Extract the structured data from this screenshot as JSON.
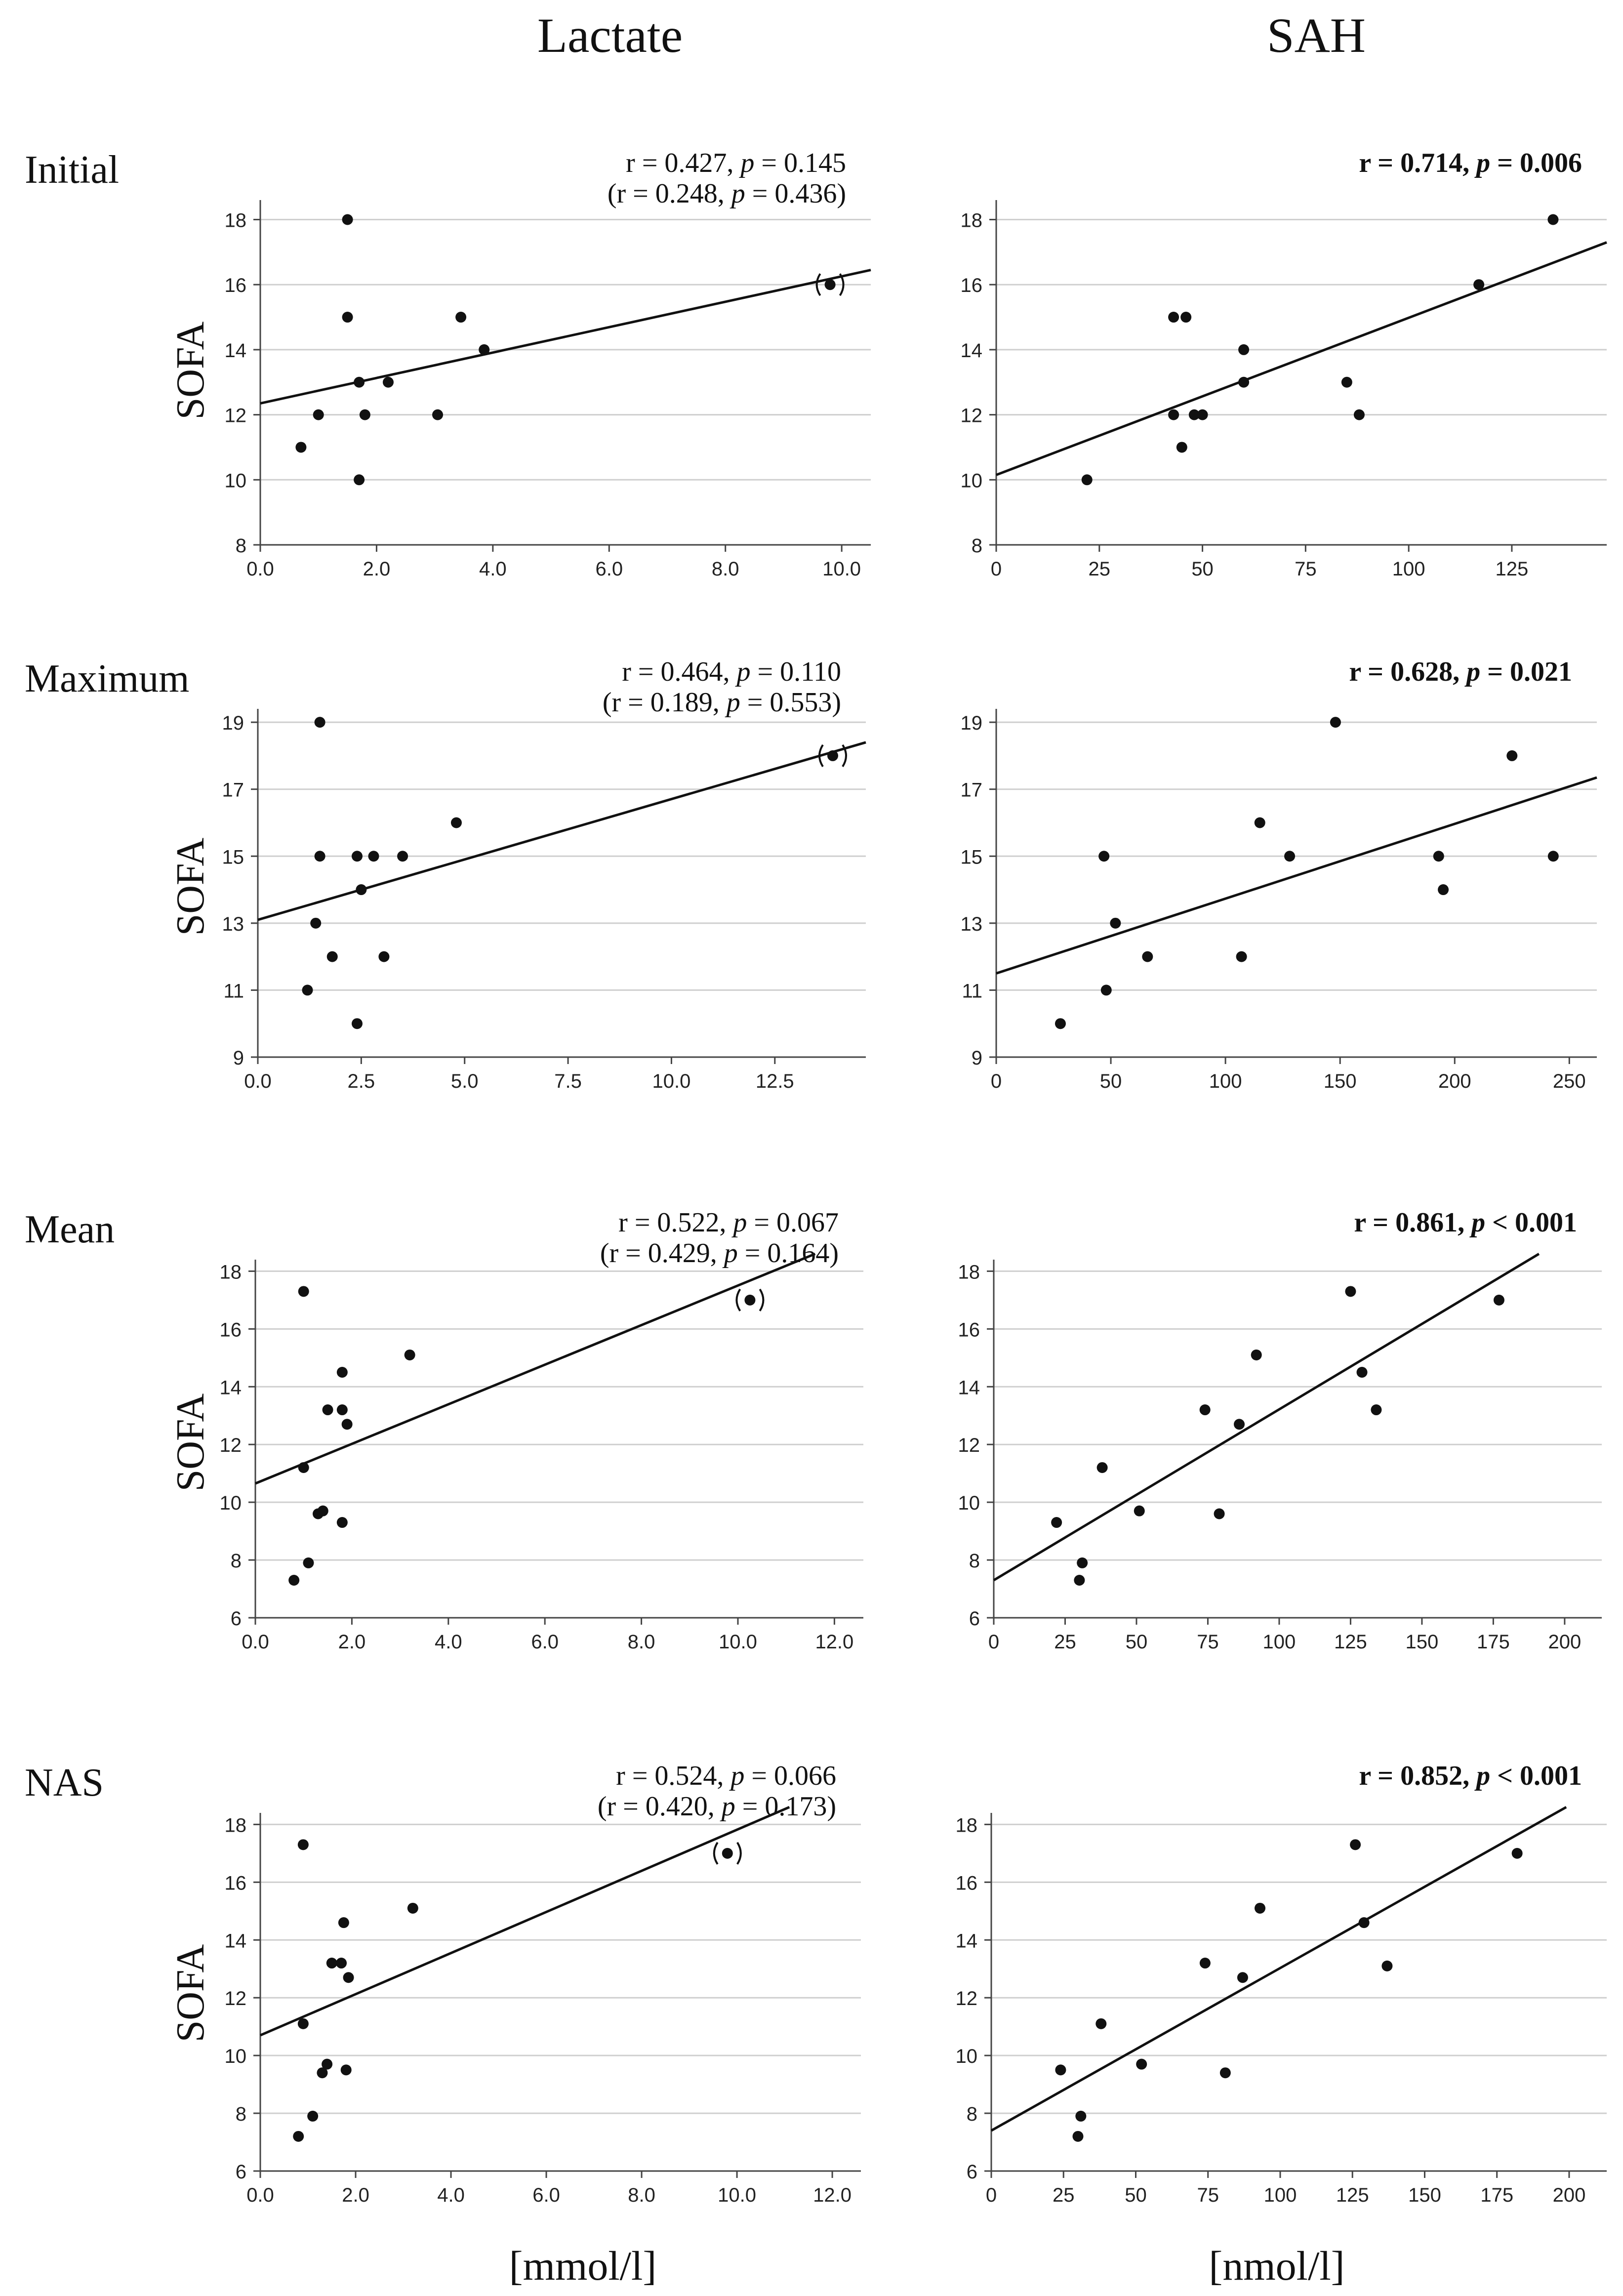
{
  "columns": [
    "Lactate",
    "SAH"
  ],
  "row_labels": [
    "Initial",
    "Maximum",
    "Mean",
    "NAS"
  ],
  "ylabel": "SOFA",
  "xlabels": [
    "[mmol/l]",
    "[nmol/l]"
  ],
  "chart_data": [
    {
      "type": "scatter",
      "column": "Lactate",
      "row": "Initial",
      "stat_line1": "r = 0.427, p = 0.145",
      "stat_line2": "(r = 0.248, p = 0.436)",
      "xlim": [
        0,
        10.5
      ],
      "ylim": [
        8,
        18.6
      ],
      "xticks": [
        0,
        2,
        4,
        6,
        8,
        10
      ],
      "xtick_labels": [
        "0.0",
        "2.0",
        "4.0",
        "6.0",
        "8.0",
        "10.0"
      ],
      "yticks": [
        8,
        10,
        12,
        14,
        16,
        18
      ],
      "ytick_labels": [
        "8",
        "10",
        "12",
        "14",
        "16",
        "18"
      ],
      "points": [
        [
          0.7,
          11
        ],
        [
          1.0,
          12
        ],
        [
          1.5,
          18
        ],
        [
          1.5,
          15
        ],
        [
          1.7,
          13
        ],
        [
          1.7,
          10
        ],
        [
          1.8,
          12
        ],
        [
          2.2,
          13
        ],
        [
          3.05,
          12
        ],
        [
          3.45,
          15
        ],
        [
          3.85,
          14
        ]
      ],
      "outlier": [
        9.8,
        16
      ],
      "fit": [
        [
          0,
          12.35
        ],
        [
          10.5,
          16.45
        ]
      ]
    },
    {
      "type": "scatter",
      "column": "SAH",
      "row": "Initial",
      "stat_line1": "r = 0.714, p = 0.006",
      "stat_line2": "",
      "xlim": [
        0,
        148
      ],
      "ylim": [
        8,
        18.6
      ],
      "xticks": [
        0,
        25,
        50,
        75,
        100,
        125
      ],
      "xtick_labels": [
        "0",
        "25",
        "50",
        "75",
        "100",
        "125"
      ],
      "yticks": [
        8,
        10,
        12,
        14,
        16,
        18
      ],
      "ytick_labels": [
        "8",
        "10",
        "12",
        "14",
        "16",
        "18"
      ],
      "points": [
        [
          22,
          10
        ],
        [
          43,
          15
        ],
        [
          43,
          12
        ],
        [
          45,
          11
        ],
        [
          46,
          15
        ],
        [
          48,
          12
        ],
        [
          50,
          12
        ],
        [
          60,
          14
        ],
        [
          60,
          13
        ],
        [
          85,
          13
        ],
        [
          88,
          12
        ],
        [
          117,
          16
        ],
        [
          135,
          18
        ]
      ],
      "fit": [
        [
          0,
          10.15
        ],
        [
          148,
          17.3
        ]
      ]
    },
    {
      "type": "scatter",
      "column": "Lactate",
      "row": "Maximum",
      "stat_line1": "r = 0.464, p = 0.110",
      "stat_line2": "(r = 0.189, p = 0.553)",
      "xlim": [
        0,
        14.7
      ],
      "ylim": [
        9,
        19.4
      ],
      "xticks": [
        0,
        2.5,
        5,
        7.5,
        10,
        12.5
      ],
      "xtick_labels": [
        "0.0",
        "2.5",
        "5.0",
        "7.5",
        "10.0",
        "12.5"
      ],
      "yticks": [
        9,
        11,
        13,
        15,
        17,
        19
      ],
      "ytick_labels": [
        "9",
        "11",
        "13",
        "15",
        "17",
        "19"
      ],
      "points": [
        [
          1.2,
          11
        ],
        [
          1.4,
          13
        ],
        [
          1.5,
          19
        ],
        [
          1.5,
          15
        ],
        [
          1.8,
          12
        ],
        [
          2.4,
          15
        ],
        [
          2.4,
          10
        ],
        [
          2.5,
          14
        ],
        [
          2.8,
          15
        ],
        [
          3.05,
          12
        ],
        [
          3.5,
          15
        ],
        [
          4.8,
          16
        ]
      ],
      "outlier": [
        13.9,
        18
      ],
      "fit": [
        [
          0,
          13.1
        ],
        [
          14.7,
          18.4
        ]
      ]
    },
    {
      "type": "scatter",
      "column": "SAH",
      "row": "Maximum",
      "stat_line1": "r = 0.628, p = 0.021",
      "stat_line2": "",
      "xlim": [
        0,
        262
      ],
      "ylim": [
        9,
        19.4
      ],
      "xticks": [
        0,
        50,
        100,
        150,
        200,
        250
      ],
      "xtick_labels": [
        "0",
        "50",
        "100",
        "150",
        "200",
        "250"
      ],
      "yticks": [
        9,
        11,
        13,
        15,
        17,
        19
      ],
      "ytick_labels": [
        "9",
        "11",
        "13",
        "15",
        "17",
        "19"
      ],
      "points": [
        [
          28,
          10
        ],
        [
          47,
          15
        ],
        [
          48,
          11
        ],
        [
          52,
          13
        ],
        [
          66,
          12
        ],
        [
          107,
          12
        ],
        [
          115,
          16
        ],
        [
          128,
          15
        ],
        [
          148,
          19
        ],
        [
          193,
          15
        ],
        [
          195,
          14
        ],
        [
          225,
          18
        ],
        [
          243,
          15
        ]
      ],
      "fit": [
        [
          0,
          11.5
        ],
        [
          262,
          17.35
        ]
      ]
    },
    {
      "type": "scatter",
      "column": "Lactate",
      "row": "Mean",
      "stat_line1": "r = 0.522, p = 0.067",
      "stat_line2": "(r = 0.429, p = 0.164)",
      "xlim": [
        0,
        12.6
      ],
      "ylim": [
        6,
        18.4
      ],
      "xticks": [
        0,
        2,
        4,
        6,
        8,
        10,
        12
      ],
      "xtick_labels": [
        "0.0",
        "2.0",
        "4.0",
        "6.0",
        "8.0",
        "10.0",
        "12.0"
      ],
      "yticks": [
        6,
        8,
        10,
        12,
        14,
        16,
        18
      ],
      "ytick_labels": [
        "6",
        "8",
        "10",
        "12",
        "14",
        "16",
        "18"
      ],
      "points": [
        [
          0.8,
          7.3
        ],
        [
          1.0,
          17.3
        ],
        [
          1.0,
          11.2
        ],
        [
          1.1,
          7.9
        ],
        [
          1.3,
          9.6
        ],
        [
          1.4,
          9.7
        ],
        [
          1.5,
          13.2
        ],
        [
          1.8,
          13.2
        ],
        [
          1.8,
          14.5
        ],
        [
          1.8,
          9.3
        ],
        [
          1.9,
          12.7
        ],
        [
          3.2,
          15.1
        ]
      ],
      "outlier": [
        10.25,
        17
      ],
      "fit": [
        [
          0,
          10.65
        ],
        [
          11.6,
          18.6
        ]
      ]
    },
    {
      "type": "scatter",
      "column": "SAH",
      "row": "Mean",
      "stat_line1": "r = 0.861, p < 0.001",
      "stat_line2": "",
      "xlim": [
        0,
        213
      ],
      "ylim": [
        6,
        18.4
      ],
      "xticks": [
        0,
        25,
        50,
        75,
        100,
        125,
        150,
        175,
        200
      ],
      "xtick_labels": [
        "0",
        "25",
        "50",
        "75",
        "100",
        "125",
        "150",
        "175",
        "200"
      ],
      "yticks": [
        6,
        8,
        10,
        12,
        14,
        16,
        18
      ],
      "ytick_labels": [
        "6",
        "8",
        "10",
        "12",
        "14",
        "16",
        "18"
      ],
      "points": [
        [
          22,
          9.3
        ],
        [
          30,
          7.3
        ],
        [
          31,
          7.9
        ],
        [
          38,
          11.2
        ],
        [
          51,
          9.7
        ],
        [
          74,
          13.2
        ],
        [
          79,
          9.6
        ],
        [
          86,
          12.7
        ],
        [
          92,
          15.1
        ],
        [
          125,
          17.3
        ],
        [
          129,
          14.5
        ],
        [
          134,
          13.2
        ],
        [
          177,
          17
        ]
      ],
      "fit": [
        [
          0,
          7.3
        ],
        [
          191,
          18.6
        ]
      ]
    },
    {
      "type": "scatter",
      "column": "Lactate",
      "row": "NAS",
      "stat_line1": "r = 0.524, p = 0.066",
      "stat_line2": "(r = 0.420, p = 0.173)",
      "xlim": [
        0,
        12.6
      ],
      "ylim": [
        6,
        18.4
      ],
      "xticks": [
        0,
        2,
        4,
        6,
        8,
        10,
        12
      ],
      "xtick_labels": [
        "0.0",
        "2.0",
        "4.0",
        "6.0",
        "8.0",
        "10.0",
        "12.0"
      ],
      "yticks": [
        6,
        8,
        10,
        12,
        14,
        16,
        18
      ],
      "ytick_labels": [
        "6",
        "8",
        "10",
        "12",
        "14",
        "16",
        "18"
      ],
      "points": [
        [
          0.8,
          7.2
        ],
        [
          0.9,
          17.3
        ],
        [
          0.9,
          11.1
        ],
        [
          1.1,
          7.9
        ],
        [
          1.3,
          9.4
        ],
        [
          1.4,
          9.7
        ],
        [
          1.5,
          13.2
        ],
        [
          1.7,
          13.2
        ],
        [
          1.75,
          14.6
        ],
        [
          1.8,
          9.5
        ],
        [
          1.85,
          12.7
        ],
        [
          3.2,
          15.1
        ]
      ],
      "outlier": [
        9.8,
        17
      ],
      "fit": [
        [
          0,
          10.7
        ],
        [
          11.1,
          18.6
        ]
      ]
    },
    {
      "type": "scatter",
      "column": "SAH",
      "row": "NAS",
      "stat_line1": "r = 0.852, p < 0.001",
      "stat_line2": "",
      "xlim": [
        0,
        213
      ],
      "ylim": [
        6,
        18.4
      ],
      "xticks": [
        0,
        25,
        50,
        75,
        100,
        125,
        150,
        175,
        200
      ],
      "xtick_labels": [
        "0",
        "25",
        "50",
        "75",
        "100",
        "125",
        "150",
        "175",
        "200"
      ],
      "yticks": [
        6,
        8,
        10,
        12,
        14,
        16,
        18
      ],
      "ytick_labels": [
        "6",
        "8",
        "10",
        "12",
        "14",
        "16",
        "18"
      ],
      "points": [
        [
          24,
          9.5
        ],
        [
          30,
          7.2
        ],
        [
          31,
          7.9
        ],
        [
          38,
          11.1
        ],
        [
          52,
          9.7
        ],
        [
          74,
          13.2
        ],
        [
          81,
          9.4
        ],
        [
          87,
          12.7
        ],
        [
          93,
          15.1
        ],
        [
          126,
          17.3
        ],
        [
          129,
          14.6
        ],
        [
          137,
          13.1
        ],
        [
          182,
          17
        ]
      ],
      "fit": [
        [
          0,
          7.4
        ],
        [
          199,
          18.6
        ]
      ]
    }
  ]
}
